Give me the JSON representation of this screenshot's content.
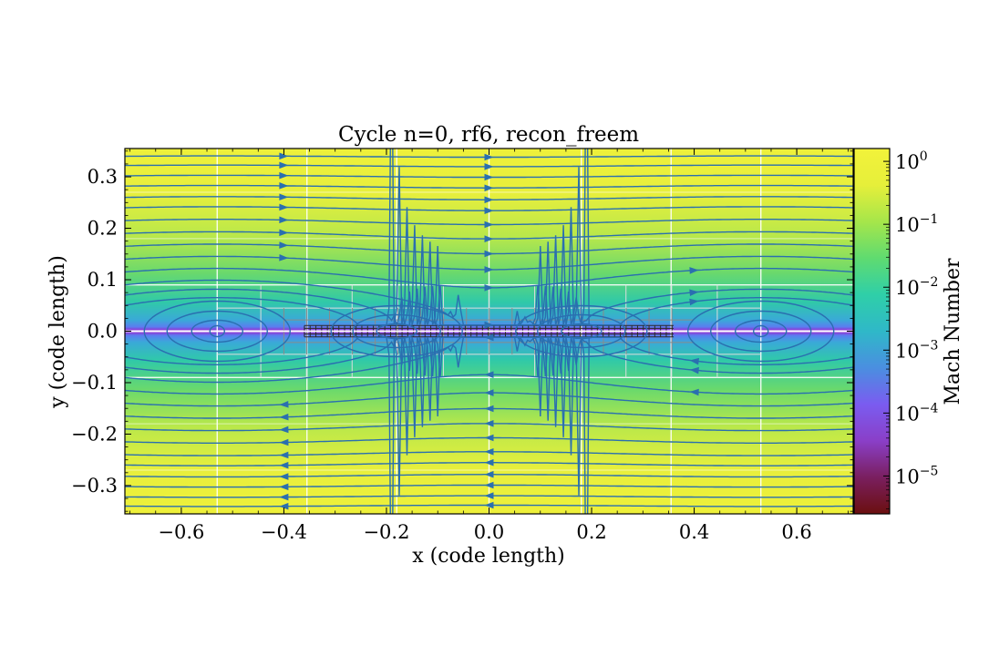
{
  "chart_data": {
    "type": "heatmap",
    "title": "Cycle n=0, rf6, recon_freem",
    "xlabel": "x  (code length)",
    "ylabel": "y  (code length)",
    "xlim": [
      -0.71,
      0.71
    ],
    "ylim": [
      -0.355,
      0.355
    ],
    "x_ticks": [
      -0.6,
      -0.4,
      -0.2,
      0.0,
      0.2,
      0.4,
      0.6
    ],
    "x_tick_labels": [
      "−0.6",
      "−0.4",
      "−0.2",
      "0.0",
      "0.2",
      "0.4",
      "0.6"
    ],
    "y_ticks": [
      0.3,
      0.2,
      0.1,
      0.0,
      -0.1,
      -0.2,
      -0.3
    ],
    "y_tick_labels": [
      "0.3",
      "0.2",
      "0.1",
      "0.0",
      "−0.1",
      "−0.2",
      "−0.3"
    ],
    "colorbar": {
      "label": "Mach Number",
      "scale": "log",
      "range": [
        2.5e-06,
        1.6
      ],
      "ticks": [
        1,
        0.1,
        0.01,
        0.001,
        0.0001,
        1e-05
      ],
      "tick_labels": [
        {
          "base": "10",
          "exp": "0"
        },
        {
          "base": "10",
          "exp": "−1"
        },
        {
          "base": "10",
          "exp": "−2"
        },
        {
          "base": "10",
          "exp": "−3"
        },
        {
          "base": "10",
          "exp": "−4"
        },
        {
          "base": "10",
          "exp": "−5"
        }
      ],
      "colormap": [
        "#6b0f0f",
        "#7a1f5f",
        "#8a3fc8",
        "#7a5cf0",
        "#4a8fe0",
        "#2fb8c8",
        "#2fcfa8",
        "#5fdb70",
        "#a6e64a",
        "#e6ef3a",
        "#f2f23a"
      ]
    },
    "overlays": {
      "streamlines": "magnetic field lines (blue) with arrows",
      "amr_grid": "refinement block outlines",
      "current_sheet_y": 0.0,
      "current_sheet_x_range": [
        -0.36,
        0.36
      ],
      "magnetic_islands_x": [
        -0.53,
        0.53
      ]
    },
    "colors": {
      "streamline": "#2a6fb0",
      "grid_coarse": "#ffffff",
      "grid_fine": "#8a8a8a"
    }
  }
}
